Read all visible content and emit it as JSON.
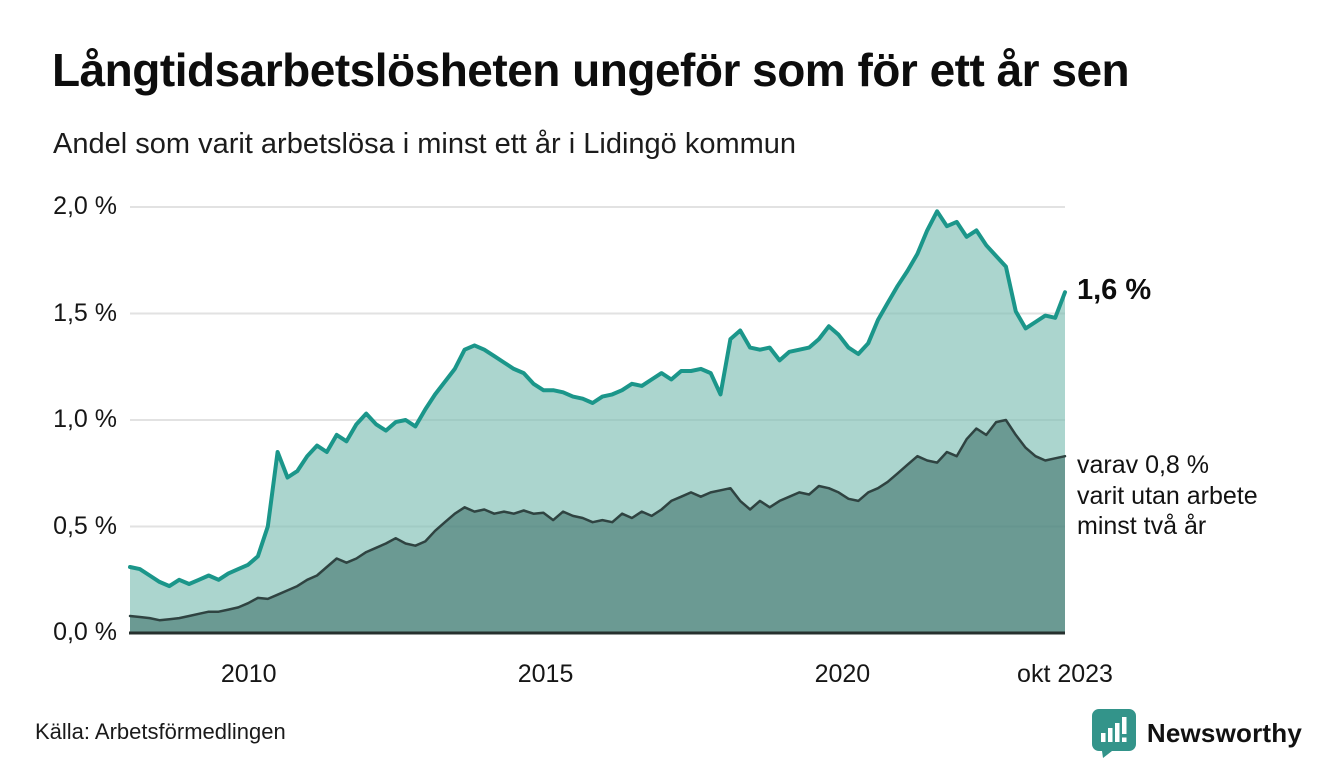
{
  "title": "Långtidsarbetslösheten ungeför som för ett år sen",
  "subtitle": "Andel som varit arbetslösa i minst ett år i Lidingö kommun",
  "source": "Källa: Arbetsförmedlingen",
  "logo": {
    "text": "Newsworthy",
    "color": "#33948a",
    "icon": "newsworthy-bar-chart-bubble"
  },
  "annotations": {
    "series1_end_value": "1,6 %",
    "series2_note_line1": "varav 0,8 %",
    "series2_note_line2": "varit utan arbete",
    "series2_note_line3": "minst två år"
  },
  "chart_data": {
    "type": "area",
    "title": "Långtidsarbetslösheten ungeför som för ett år sen",
    "subtitle": "Andel som varit arbetslösa i minst ett år i Lidingö kommun",
    "x_start": 2008.0,
    "x_end": 2023.75,
    "ylim": [
      0,
      2.0
    ],
    "grid": true,
    "grid_color": "#e2e2e2",
    "axis_color": "#26302e",
    "y_ticks": [
      {
        "v": 2.0,
        "label": "2,0 %"
      },
      {
        "v": 1.5,
        "label": "1,5 %"
      },
      {
        "v": 1.0,
        "label": "1,0 %"
      },
      {
        "v": 0.5,
        "label": "0,5 %"
      },
      {
        "v": 0.0,
        "label": "0,0 %"
      }
    ],
    "x_ticks": [
      {
        "x": 2010,
        "label": "2010"
      },
      {
        "x": 2015,
        "label": "2015"
      },
      {
        "x": 2020,
        "label": "2020"
      },
      {
        "x": 2023.75,
        "label": "okt 2023"
      }
    ],
    "series": [
      {
        "name": "Andel som varit arbetslösa i minst ett år",
        "end_value_label": "1,6 %",
        "color": "#1b968a",
        "fill": "rgba(127,191,181,0.66)",
        "stroke_width": 4,
        "values": [
          0.31,
          0.3,
          0.27,
          0.24,
          0.22,
          0.25,
          0.23,
          0.25,
          0.27,
          0.25,
          0.28,
          0.3,
          0.32,
          0.36,
          0.5,
          0.85,
          0.73,
          0.76,
          0.83,
          0.88,
          0.85,
          0.93,
          0.9,
          0.98,
          1.03,
          0.98,
          0.95,
          0.99,
          1.0,
          0.97,
          1.05,
          1.12,
          1.18,
          1.24,
          1.33,
          1.35,
          1.33,
          1.3,
          1.27,
          1.24,
          1.22,
          1.17,
          1.14,
          1.14,
          1.13,
          1.11,
          1.1,
          1.08,
          1.11,
          1.12,
          1.14,
          1.17,
          1.16,
          1.19,
          1.22,
          1.19,
          1.23,
          1.23,
          1.24,
          1.22,
          1.12,
          1.38,
          1.42,
          1.34,
          1.33,
          1.34,
          1.28,
          1.32,
          1.33,
          1.34,
          1.38,
          1.44,
          1.4,
          1.34,
          1.31,
          1.36,
          1.47,
          1.55,
          1.63,
          1.7,
          1.78,
          1.89,
          1.98,
          1.91,
          1.93,
          1.86,
          1.89,
          1.82,
          1.77,
          1.72,
          1.51,
          1.43,
          1.46,
          1.49,
          1.48,
          1.6
        ]
      },
      {
        "name": "varav utan arbete minst två år",
        "end_value_label": "0,8 %",
        "color": "#2f4341",
        "fill": "rgba(47,99,93,0.52)",
        "stroke_width": 2.5,
        "values": [
          0.08,
          0.075,
          0.07,
          0.06,
          0.065,
          0.07,
          0.08,
          0.09,
          0.1,
          0.1,
          0.11,
          0.12,
          0.14,
          0.165,
          0.16,
          0.18,
          0.2,
          0.22,
          0.25,
          0.27,
          0.31,
          0.35,
          0.33,
          0.35,
          0.38,
          0.4,
          0.42,
          0.445,
          0.42,
          0.41,
          0.43,
          0.48,
          0.52,
          0.56,
          0.59,
          0.57,
          0.58,
          0.56,
          0.57,
          0.56,
          0.575,
          0.56,
          0.565,
          0.53,
          0.57,
          0.55,
          0.54,
          0.52,
          0.53,
          0.52,
          0.56,
          0.54,
          0.57,
          0.55,
          0.58,
          0.62,
          0.64,
          0.66,
          0.64,
          0.66,
          0.67,
          0.68,
          0.62,
          0.58,
          0.62,
          0.59,
          0.62,
          0.64,
          0.66,
          0.65,
          0.69,
          0.68,
          0.66,
          0.63,
          0.62,
          0.66,
          0.68,
          0.71,
          0.75,
          0.79,
          0.83,
          0.81,
          0.8,
          0.85,
          0.83,
          0.91,
          0.96,
          0.93,
          0.99,
          1.0,
          0.93,
          0.87,
          0.83,
          0.81,
          0.82,
          0.83
        ]
      }
    ]
  }
}
